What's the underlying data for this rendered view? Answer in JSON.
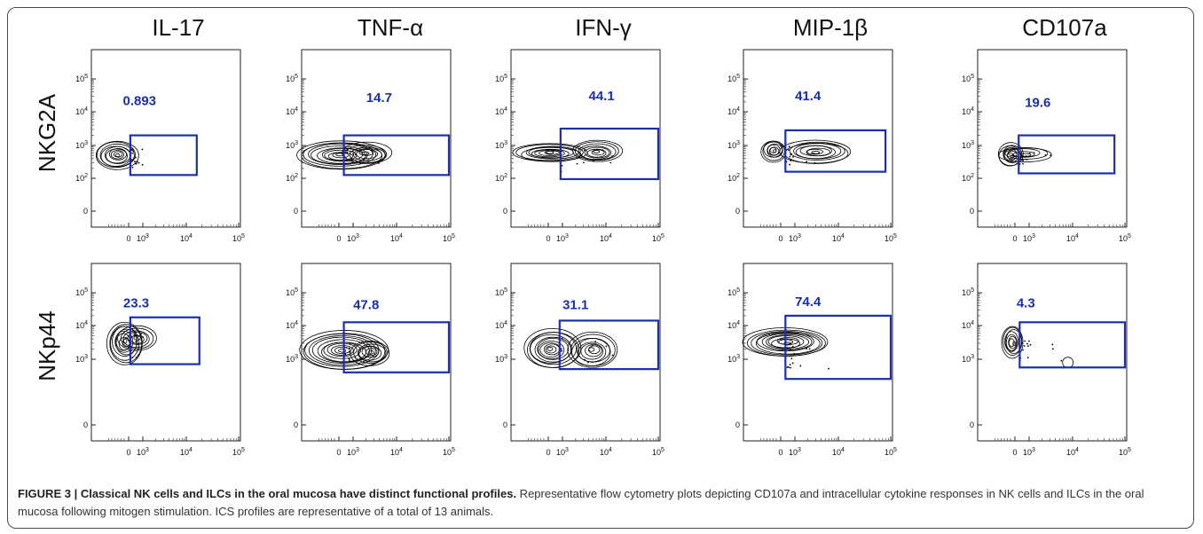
{
  "figure": {
    "columns": [
      "IL-17",
      "TNF-α",
      "IFN-γ",
      "MIP-1β",
      "CD107a"
    ],
    "rows": [
      "NKG2A",
      "NKp44"
    ]
  },
  "chart_data": {
    "type": "scatter",
    "subtype": "flow-cytometry contour plots with gates",
    "x_scale": "biexponential (log)",
    "y_scale": "biexponential (log)",
    "x_ticks": [
      "0",
      "10^3",
      "10^4",
      "10^5"
    ],
    "y_ticks": [
      "0",
      "10^2",
      "10^3",
      "10^4",
      "10^5"
    ],
    "panels": [
      {
        "row": "NKG2A",
        "column": "IL-17",
        "gate_value": "0.893"
      },
      {
        "row": "NKG2A",
        "column": "TNF-α",
        "gate_value": "14.7"
      },
      {
        "row": "NKG2A",
        "column": "IFN-γ",
        "gate_value": "44.1"
      },
      {
        "row": "NKG2A",
        "column": "MIP-1β",
        "gate_value": "41.4"
      },
      {
        "row": "NKG2A",
        "column": "CD107a",
        "gate_value": "19.6"
      },
      {
        "row": "NKp44",
        "column": "IL-17",
        "gate_value": "23.3"
      },
      {
        "row": "NKp44",
        "column": "TNF-α",
        "gate_value": "47.8"
      },
      {
        "row": "NKp44",
        "column": "IFN-γ",
        "gate_value": "31.1"
      },
      {
        "row": "NKp44",
        "column": "MIP-1β",
        "gate_value": "74.4"
      },
      {
        "row": "NKp44",
        "column": "CD107a",
        "gate_value": "4.3"
      }
    ],
    "colors": {
      "gate": "#1a2fb0",
      "contour": "#000000"
    }
  },
  "caption": {
    "title": "FIGURE 3 | Classical NK cells and ILCs in the oral mucosa have distinct functional profiles.",
    "body": " Representative flow cytometry plots depicting CD107a and intracellular cytokine responses in NK cells and ILCs in the oral mucosa following mitogen stimulation. ICS profiles are representative of a total of 13 animals."
  }
}
